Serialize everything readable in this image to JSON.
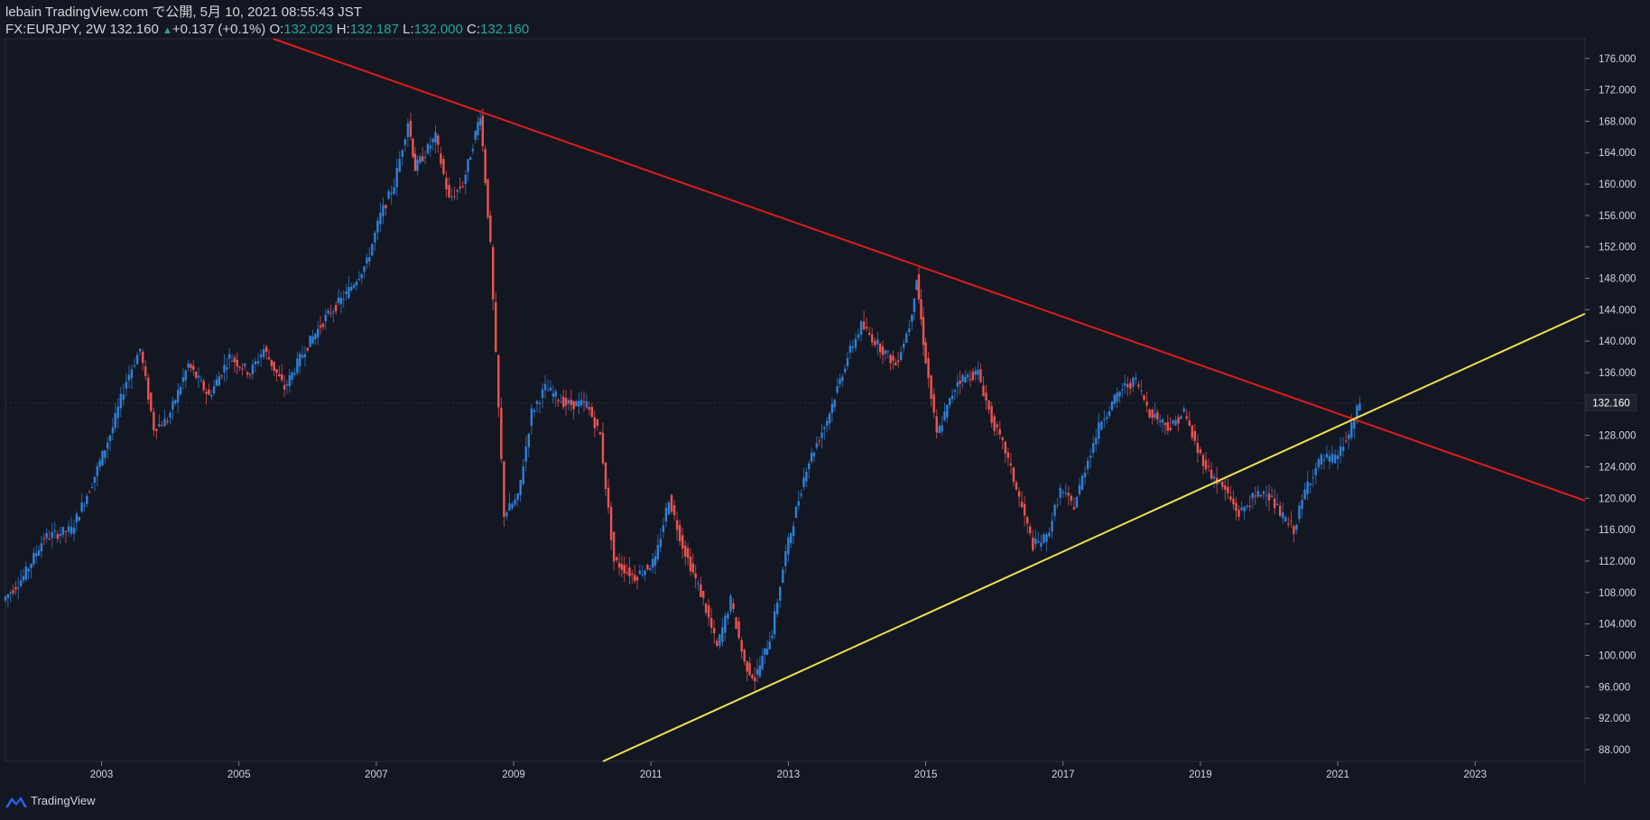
{
  "header": {
    "publisher_line": "lebain TradingView.com で公開, 5月 10, 2021 08:55:43 JST",
    "symbol_prefix": "FX:EURJPY, 2W ",
    "last_price": "132.160",
    "change_arrow": "▲",
    "change": "+0.137 (+0.1%)",
    "o_label": "O:",
    "o_value": "132.023",
    "h_label": "H:",
    "h_value": "132.187",
    "l_label": "L:",
    "l_value": "132.000",
    "c_label": "C:",
    "c_value": "132.160"
  },
  "footer": {
    "brand": "TradingView",
    "logo_icon": "tradingview-logo-icon"
  },
  "colors": {
    "background": "#131722",
    "up_candle": "#2f80d9",
    "down_candle": "#ef5350",
    "resistance_line": "#e01b1b",
    "support_line": "#f2e14b",
    "text": "#d1d4dc",
    "teal": "#26a69a"
  },
  "chart_data": {
    "type": "candlestick",
    "symbol": "FX:EURJPY",
    "interval": "2W",
    "x_tick_labels": [
      "2003",
      "2005",
      "2007",
      "2009",
      "2011",
      "2013",
      "2015",
      "2017",
      "2019",
      "2021",
      "2023"
    ],
    "x_ticks": [
      2003,
      2005,
      2007,
      2009,
      2011,
      2013,
      2015,
      2017,
      2019,
      2021,
      2023
    ],
    "xlim": [
      2001.6,
      2024.6
    ],
    "y_tick_labels": [
      "88.000",
      "92.000",
      "96.000",
      "100.000",
      "104.000",
      "108.000",
      "112.000",
      "116.000",
      "120.000",
      "124.000",
      "128.000",
      "136.000",
      "140.000",
      "144.000",
      "148.000",
      "152.000",
      "156.000",
      "160.000",
      "164.000",
      "168.000",
      "172.000",
      "176.000"
    ],
    "y_ticks": [
      88,
      92,
      96,
      100,
      104,
      108,
      112,
      116,
      120,
      124,
      128,
      136,
      140,
      144,
      148,
      152,
      156,
      160,
      164,
      168,
      172,
      176
    ],
    "ylim": [
      86.5,
      178.5
    ],
    "last_price_label": "132.160",
    "last_price": 132.16,
    "price_path": [
      [
        2001.6,
        107
      ],
      [
        2001.9,
        110
      ],
      [
        2002.2,
        115
      ],
      [
        2002.6,
        116
      ],
      [
        2002.9,
        122
      ],
      [
        2003.2,
        129
      ],
      [
        2003.4,
        135
      ],
      [
        2003.6,
        139
      ],
      [
        2003.8,
        129
      ],
      [
        2004.0,
        130
      ],
      [
        2004.3,
        137
      ],
      [
        2004.6,
        133
      ],
      [
        2004.9,
        138
      ],
      [
        2005.2,
        136
      ],
      [
        2005.4,
        139
      ],
      [
        2005.7,
        134
      ],
      [
        2006.0,
        139
      ],
      [
        2006.3,
        143
      ],
      [
        2006.6,
        146
      ],
      [
        2006.9,
        150
      ],
      [
        2007.1,
        156
      ],
      [
        2007.3,
        160
      ],
      [
        2007.5,
        168
      ],
      [
        2007.6,
        162
      ],
      [
        2007.9,
        166
      ],
      [
        2008.1,
        158
      ],
      [
        2008.3,
        160
      ],
      [
        2008.55,
        169
      ],
      [
        2008.7,
        152
      ],
      [
        2008.78,
        138
      ],
      [
        2008.9,
        118
      ],
      [
        2009.1,
        120
      ],
      [
        2009.3,
        131
      ],
      [
        2009.5,
        134
      ],
      [
        2009.8,
        132
      ],
      [
        2010.1,
        132
      ],
      [
        2010.3,
        128
      ],
      [
        2010.5,
        112
      ],
      [
        2010.8,
        110
      ],
      [
        2011.1,
        112
      ],
      [
        2011.3,
        120
      ],
      [
        2011.5,
        114
      ],
      [
        2011.8,
        107
      ],
      [
        2012.0,
        101
      ],
      [
        2012.2,
        107
      ],
      [
        2012.4,
        99
      ],
      [
        2012.55,
        97
      ],
      [
        2012.8,
        103
      ],
      [
        2013.0,
        113
      ],
      [
        2013.3,
        124
      ],
      [
        2013.6,
        130
      ],
      [
        2013.9,
        138
      ],
      [
        2014.1,
        142
      ],
      [
        2014.3,
        140
      ],
      [
        2014.6,
        137
      ],
      [
        2014.8,
        142
      ],
      [
        2014.9,
        148
      ],
      [
        2015.0,
        140
      ],
      [
        2015.2,
        128
      ],
      [
        2015.5,
        135
      ],
      [
        2015.8,
        136
      ],
      [
        2016.0,
        130
      ],
      [
        2016.2,
        126
      ],
      [
        2016.4,
        120
      ],
      [
        2016.6,
        114
      ],
      [
        2016.8,
        115
      ],
      [
        2017.0,
        121
      ],
      [
        2017.2,
        119
      ],
      [
        2017.4,
        125
      ],
      [
        2017.6,
        130
      ],
      [
        2017.9,
        134
      ],
      [
        2018.1,
        135
      ],
      [
        2018.3,
        131
      ],
      [
        2018.6,
        129
      ],
      [
        2018.8,
        131
      ],
      [
        2019.0,
        126
      ],
      [
        2019.2,
        123
      ],
      [
        2019.4,
        121
      ],
      [
        2019.6,
        118
      ],
      [
        2019.8,
        120
      ],
      [
        2020.0,
        121
      ],
      [
        2020.2,
        118
      ],
      [
        2020.4,
        116
      ],
      [
        2020.6,
        122
      ],
      [
        2020.8,
        125
      ],
      [
        2021.0,
        125
      ],
      [
        2021.2,
        128
      ],
      [
        2021.36,
        132.16
      ]
    ],
    "trend_lines": [
      {
        "color": "resistance",
        "points": [
          [
            2005.5,
            178.5
          ],
          [
            2024.6,
            119.7
          ]
        ]
      },
      {
        "color": "support",
        "points": [
          [
            2010.3,
            86.5
          ],
          [
            2024.6,
            143.5
          ]
        ]
      }
    ],
    "axis_right": true,
    "grid": false
  }
}
